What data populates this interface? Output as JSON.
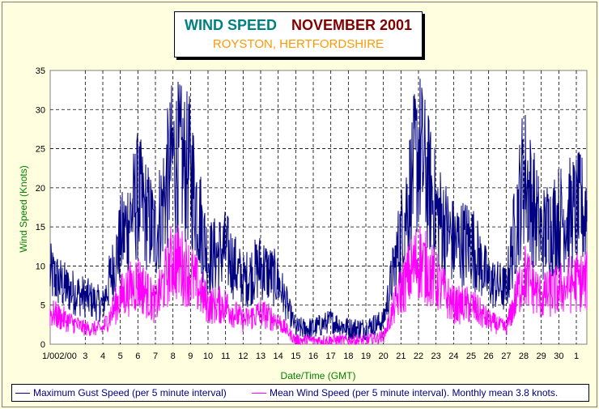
{
  "chart_data": {
    "type": "line",
    "title": "WIND SPEED",
    "title_month": "NOVEMBER 2001",
    "subtitle": "ROYSTON, HERTFORDSHIRE",
    "xlabel": "Date/Time (GMT)",
    "ylabel": "Wind Speed (Knots)",
    "ylim": [
      0,
      35
    ],
    "yticks": [
      "0",
      "5",
      "10",
      "15",
      "20",
      "25",
      "30",
      "35"
    ],
    "xticks": [
      "1/002/00",
      "3",
      "4",
      "5",
      "6",
      "7",
      "8",
      "9",
      "10",
      "11",
      "12",
      "13",
      "14",
      "15",
      "16",
      "17",
      "18",
      "19",
      "20",
      "21",
      "22",
      "23",
      "24",
      "25",
      "26",
      "27",
      "28",
      "29",
      "30",
      "1"
    ],
    "grid": true,
    "days": [
      "1",
      "2",
      "3",
      "4",
      "5",
      "6",
      "7",
      "8",
      "9",
      "10",
      "11",
      "12",
      "13",
      "14",
      "15",
      "16",
      "17",
      "18",
      "19",
      "20",
      "21",
      "22",
      "23",
      "24",
      "25",
      "26",
      "27",
      "28",
      "29",
      "30",
      "1"
    ],
    "series": [
      {
        "name": "Maximum Gust Speed (per 5 minute interval)",
        "color": "#000080",
        "values": [
          9,
          7,
          6,
          5,
          13,
          19,
          14,
          24,
          22,
          11,
          12,
          8,
          10,
          8,
          2,
          2,
          3,
          2,
          2,
          3,
          14,
          25,
          17,
          13,
          13,
          8,
          7,
          22,
          14,
          16,
          17
        ]
      },
      {
        "name": "Mean Wind Speed (per 5 minute interval). Monthly mean 3.8 knots.",
        "color": "#ff00ff",
        "values": [
          4,
          3,
          2,
          2,
          6,
          8,
          5,
          11,
          9,
          5,
          5,
          3,
          4,
          3,
          0.5,
          0.5,
          0.5,
          0.5,
          0.5,
          1,
          7,
          11,
          8,
          5,
          5,
          3,
          2,
          9,
          6,
          7,
          8
        ]
      }
    ]
  },
  "legend": {
    "gust": "Maximum Gust Speed (per 5 minute interval)",
    "mean": "Mean Wind Speed (per 5 minute interval). Monthly mean 3.8 knots."
  }
}
